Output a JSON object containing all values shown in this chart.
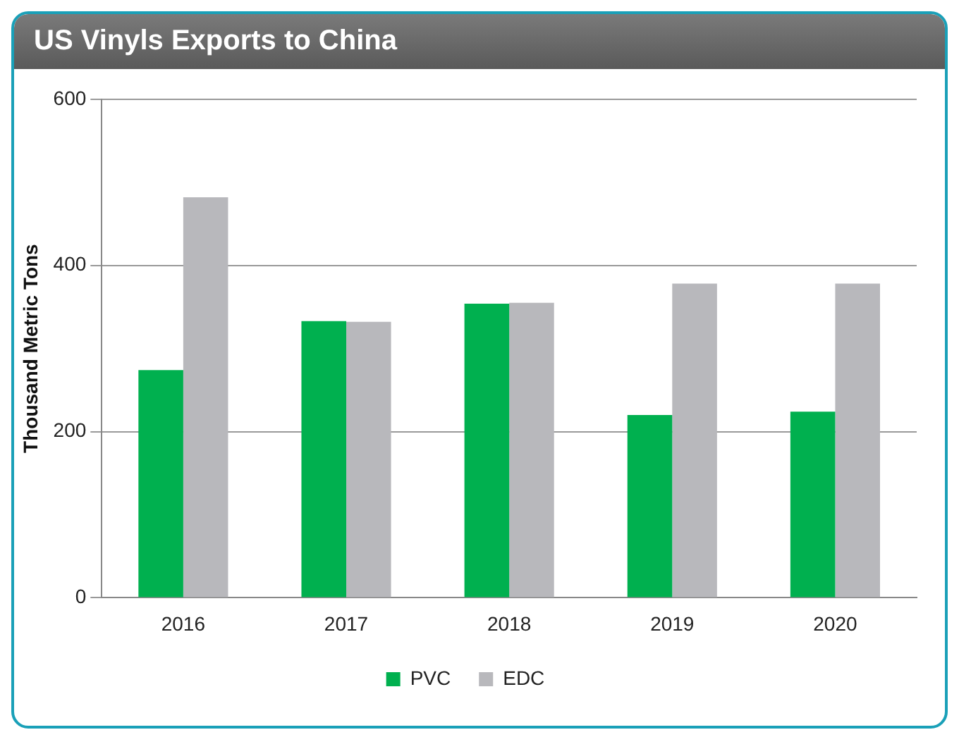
{
  "chart_data": {
    "type": "bar",
    "title": "US Vinyls  Exports to China",
    "ylabel": "Thousand Metric Tons",
    "categories": [
      "2016",
      "2017",
      "2018",
      "2019",
      "2020"
    ],
    "series": [
      {
        "name": "PVC",
        "color": "#00b04f",
        "values": [
          274,
          333,
          354,
          220,
          224
        ]
      },
      {
        "name": "EDC",
        "color": "#b8b8bc",
        "values": [
          482,
          332,
          355,
          378,
          378
        ]
      }
    ],
    "ylim": [
      0,
      600
    ],
    "yticks": [
      0,
      200,
      400,
      600
    ],
    "grid": "y",
    "legend": "bottom"
  }
}
